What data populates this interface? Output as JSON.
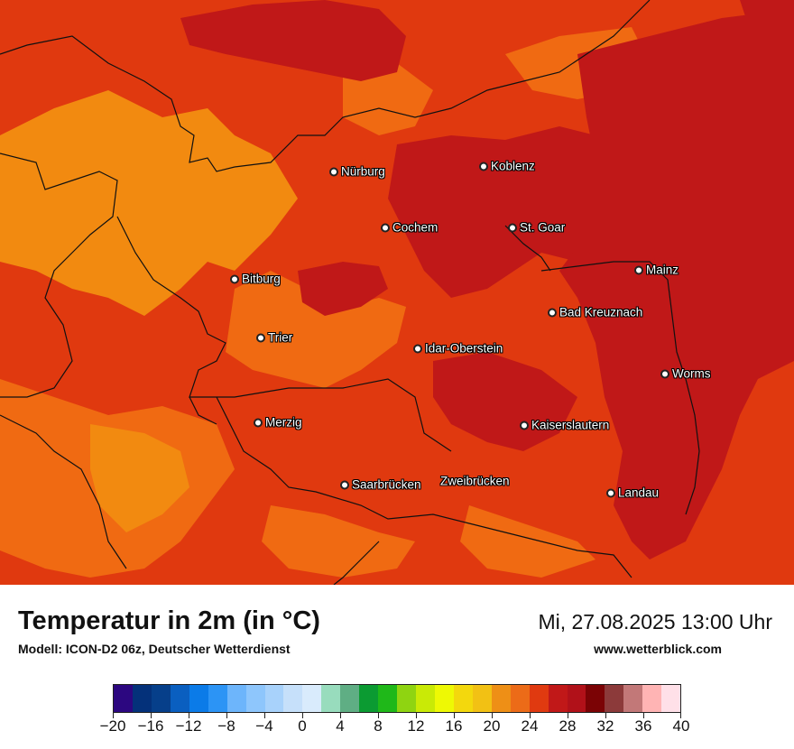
{
  "map": {
    "cities": [
      {
        "name": "Nürburg"
      },
      {
        "name": "Koblenz"
      },
      {
        "name": "Cochem"
      },
      {
        "name": "St. Goar"
      },
      {
        "name": "Mainz"
      },
      {
        "name": "Bitburg"
      },
      {
        "name": "Bad Kreuznach"
      },
      {
        "name": "Trier"
      },
      {
        "name": "Idar-Oberstein"
      },
      {
        "name": "Worms"
      },
      {
        "name": "Merzig"
      },
      {
        "name": "Kaiserslautern"
      },
      {
        "name": "Saarbrücken"
      },
      {
        "name": "Zweibrücken"
      },
      {
        "name": "Landau"
      }
    ],
    "colors": {
      "base": "#e0390f",
      "cooler": "#f06a12",
      "coolest": "#f28a10",
      "warm": "#c01818",
      "border_line": "#111111"
    }
  },
  "footer": {
    "title": "Temperatur in 2m (in °C)",
    "subtitle": "Modell: ICON-D2 06z, Deutscher Wetterdienst",
    "datetime": "Mi, 27.08.2025 13:00 Uhr",
    "website": "www.wetterblick.com"
  },
  "legend": {
    "tick_labels": [
      "−20",
      "−16",
      "−12",
      "−8",
      "−4",
      "0",
      "4",
      "8",
      "12",
      "16",
      "20",
      "24",
      "28",
      "32",
      "36",
      "40"
    ],
    "colors": [
      "#2c0780",
      "#04317a",
      "#063f8a",
      "#0a5fc0",
      "#0b7be8",
      "#2c94f5",
      "#6db5fb",
      "#8ec6fc",
      "#a8d2fb",
      "#c6e0fa",
      "#d9ebfc",
      "#98dcbd",
      "#5fae84",
      "#0b9b32",
      "#1fb819",
      "#8fd411",
      "#c9ea06",
      "#eef904",
      "#f3d80d",
      "#f2c114",
      "#ee8f16",
      "#ec6b18",
      "#e03a10",
      "#c11818",
      "#b11119",
      "#7b0305",
      "#8c3a3a",
      "#c27878",
      "#ffb4b4",
      "#ffe0e8"
    ]
  }
}
